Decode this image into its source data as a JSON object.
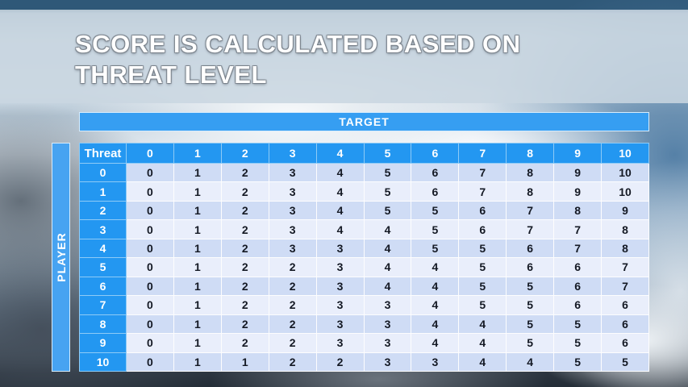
{
  "slide": {
    "title_line1": "SCORE IS CALCULATED BASED ON",
    "title_line2": "THREAT LEVEL"
  },
  "chart_data": {
    "type": "table",
    "title": "SCORE IS CALCULATED BASED ON THREAT LEVEL",
    "target_label": "TARGET",
    "player_label": "PLAYER",
    "corner_label": "Threat",
    "column_headers": [
      "0",
      "1",
      "2",
      "3",
      "4",
      "5",
      "6",
      "7",
      "8",
      "9",
      "10"
    ],
    "rows": [
      {
        "threat": "0",
        "scores": [
          0,
          1,
          2,
          3,
          4,
          5,
          6,
          7,
          8,
          9,
          10
        ]
      },
      {
        "threat": "1",
        "scores": [
          0,
          1,
          2,
          3,
          4,
          5,
          6,
          7,
          8,
          9,
          10
        ]
      },
      {
        "threat": "2",
        "scores": [
          0,
          1,
          2,
          3,
          4,
          5,
          5,
          6,
          7,
          8,
          9
        ]
      },
      {
        "threat": "3",
        "scores": [
          0,
          1,
          2,
          3,
          4,
          4,
          5,
          6,
          7,
          7,
          8
        ]
      },
      {
        "threat": "4",
        "scores": [
          0,
          1,
          2,
          3,
          3,
          4,
          5,
          5,
          6,
          7,
          8
        ]
      },
      {
        "threat": "5",
        "scores": [
          0,
          1,
          2,
          2,
          3,
          4,
          4,
          5,
          6,
          6,
          7
        ]
      },
      {
        "threat": "6",
        "scores": [
          0,
          1,
          2,
          2,
          3,
          4,
          4,
          5,
          5,
          6,
          7
        ]
      },
      {
        "threat": "7",
        "scores": [
          0,
          1,
          2,
          2,
          3,
          3,
          4,
          5,
          5,
          6,
          6
        ]
      },
      {
        "threat": "8",
        "scores": [
          0,
          1,
          2,
          2,
          3,
          3,
          4,
          4,
          5,
          5,
          6
        ]
      },
      {
        "threat": "9",
        "scores": [
          0,
          1,
          2,
          2,
          3,
          3,
          4,
          4,
          5,
          5,
          6
        ]
      },
      {
        "threat": "10",
        "scores": [
          0,
          1,
          1,
          2,
          2,
          3,
          3,
          4,
          4,
          5,
          5
        ]
      }
    ]
  },
  "colors": {
    "accent_blue": "#2e9bf1",
    "banner_blue": "#47a3f1",
    "row_shade_dark": "#cfdcf5",
    "row_shade_light": "#e9eefb",
    "cell_text": "#141924",
    "title_text": "#ffffff",
    "title_band": "#cad6e1",
    "bottom_strip": "#2b343e"
  }
}
